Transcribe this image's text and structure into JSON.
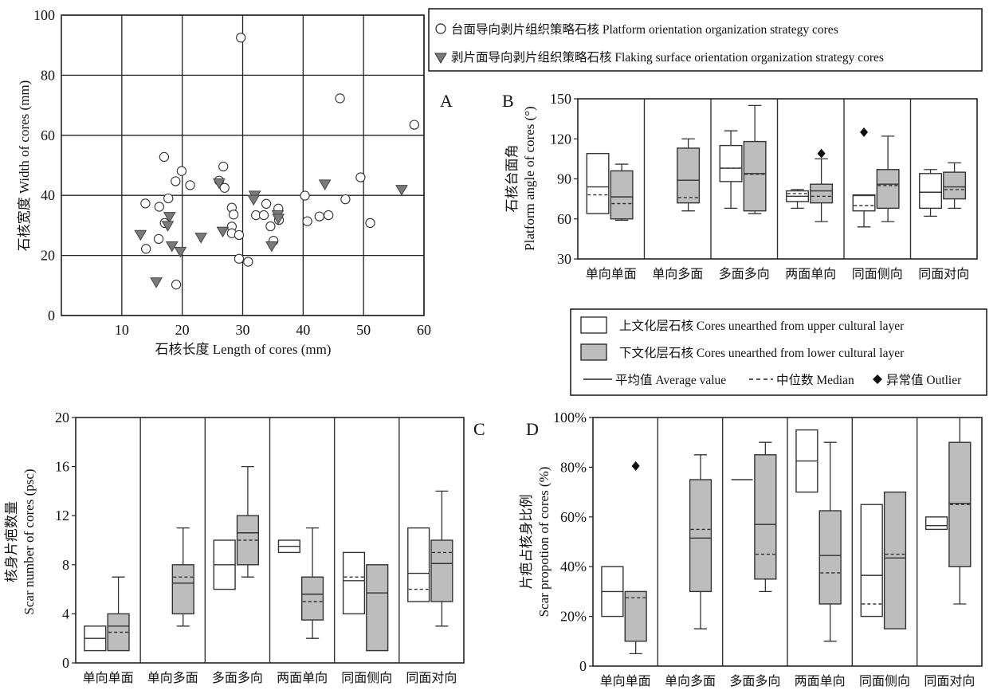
{
  "legend_a": {
    "items": [
      {
        "symbol": "circle",
        "label": "台面导向剥片组织策略石核 Platform orientation organization strategy cores"
      },
      {
        "symbol": "triangle",
        "label": "剥片面导向剥片组织策略石核 Flaking surface orientation organization strategy cores"
      }
    ]
  },
  "legend_box": {
    "upper": "上文化层石核 Cores unearthed from upper cultural layer",
    "lower": "下文化层石核 Cores unearthed from lower cultural layer",
    "mean": "平均值 Average value",
    "median": "中位数 Median",
    "outlier": "异常值 Outlier"
  },
  "colors": {
    "upper_fill": "#ffffff",
    "lower_fill": "#bdbdbd",
    "triangle_fill": "#7a7a7a",
    "stroke": "#2b2b2b"
  },
  "chart_data": [
    {
      "id": "A",
      "panel_label": "A",
      "type": "scatter",
      "xlabel": "石核长度 Length of cores (mm)",
      "ylabel": "石核宽度 Width of cores (mm)",
      "xlim": [
        0,
        60
      ],
      "ylim": [
        0,
        100
      ],
      "xticks": [
        10,
        20,
        30,
        40,
        50,
        60
      ],
      "yticks": [
        0,
        20,
        40,
        60,
        80,
        100
      ],
      "grid": true,
      "legend_position": "top-right (outside)",
      "series": [
        {
          "name": "台面导向剥片组织策略石核 Platform orientation organization strategy cores",
          "marker": "circle",
          "points": [
            [
              29.7,
              92.5
            ],
            [
              46.1,
              72.3
            ],
            [
              58.4,
              63.5
            ],
            [
              17.0,
              52.8
            ],
            [
              19.9,
              48.1
            ],
            [
              26.8,
              49.6
            ],
            [
              18.9,
              44.7
            ],
            [
              21.3,
              43.4
            ],
            [
              26.1,
              44.9
            ],
            [
              27.0,
              42.5
            ],
            [
              49.5,
              46.0
            ],
            [
              17.7,
              39.0
            ],
            [
              13.9,
              37.3
            ],
            [
              16.2,
              36.2
            ],
            [
              40.3,
              39.9
            ],
            [
              47.0,
              38.7
            ],
            [
              28.2,
              35.9
            ],
            [
              28.5,
              33.6
            ],
            [
              33.9,
              37.2
            ],
            [
              35.9,
              35.6
            ],
            [
              32.2,
              33.4
            ],
            [
              33.5,
              33.4
            ],
            [
              36.0,
              31.8
            ],
            [
              34.6,
              29.7
            ],
            [
              28.2,
              29.6
            ],
            [
              28.2,
              27.4
            ],
            [
              29.4,
              26.8
            ],
            [
              17.1,
              30.8
            ],
            [
              16.1,
              25.5
            ],
            [
              14.0,
              22.2
            ],
            [
              35.1,
              24.9
            ],
            [
              29.4,
              18.9
            ],
            [
              30.9,
              17.9
            ],
            [
              19.0,
              10.3
            ],
            [
              44.2,
              33.4
            ],
            [
              42.7,
              33.0
            ],
            [
              40.7,
              31.4
            ],
            [
              51.1,
              30.8
            ]
          ]
        },
        {
          "name": "剥片面导向剥片组织策略石核 Flaking surface orientation organization strategy cores",
          "marker": "triangle-down",
          "points": [
            [
              26.1,
              44.2
            ],
            [
              32.0,
              40.1
            ],
            [
              31.8,
              38.7
            ],
            [
              43.6,
              43.8
            ],
            [
              56.3,
              42.0
            ],
            [
              35.8,
              33.6
            ],
            [
              35.9,
              32.4
            ],
            [
              17.9,
              33.0
            ],
            [
              17.6,
              30.0
            ],
            [
              13.1,
              27.0
            ],
            [
              26.7,
              28.1
            ],
            [
              23.1,
              26.1
            ],
            [
              18.3,
              23.2
            ],
            [
              19.7,
              21.4
            ],
            [
              34.8,
              23.2
            ],
            [
              15.7,
              11.2
            ]
          ]
        }
      ]
    },
    {
      "id": "B",
      "panel_label": "B",
      "type": "box",
      "ylabel": "石核台面角 Platform angle of cores (°)",
      "ylim": [
        30,
        150
      ],
      "yticks": [
        30,
        60,
        90,
        120,
        150
      ],
      "categories": [
        "单向单面",
        "单向多面",
        "多面多向",
        "两面单向",
        "同面侧向",
        "同面对向"
      ],
      "groups": [
        {
          "upper": {
            "q1": 64,
            "q3": 109,
            "mean": 84,
            "median": 78
          },
          "lower": {
            "q1": 60,
            "q3": 96,
            "mean": 76.5,
            "median": 71.5,
            "min": 59,
            "max": 101
          }
        },
        {
          "upper": null,
          "lower": {
            "q1": 72,
            "q3": 113,
            "mean": 89,
            "median": 76,
            "min": 66,
            "max": 120
          }
        },
        {
          "upper": {
            "q1": 88,
            "q3": 115,
            "mean": 98,
            "median": 98,
            "min": 68,
            "max": 126
          },
          "lower": {
            "q1": 66,
            "q3": 118,
            "mean": 94,
            "median": 93.5,
            "min": 64,
            "max": 145
          }
        },
        {
          "upper": {
            "q1": 73,
            "q3": 81,
            "mean": 77,
            "median": 79,
            "min": 68,
            "max": 82
          },
          "lower": {
            "q1": 72,
            "q3": 86,
            "mean": 81,
            "median": 77,
            "min": 58,
            "max": 105,
            "outliers": [
              109
            ]
          }
        },
        {
          "upper": {
            "q1": 66,
            "q3": 78,
            "mean": 77.5,
            "median": 70,
            "min": 54,
            "outliers": [
              125
            ]
          },
          "lower": {
            "q1": 68,
            "q3": 97,
            "mean": 86,
            "median": 85,
            "min": 58,
            "max": 122
          }
        },
        {
          "upper": {
            "q1": 68,
            "q3": 94,
            "mean": 80,
            "median": 80,
            "min": 62,
            "max": 97
          },
          "lower": {
            "q1": 75,
            "q3": 95,
            "mean": 84,
            "median": 82,
            "min": 68,
            "max": 102
          }
        }
      ]
    },
    {
      "id": "C",
      "panel_label": "C",
      "type": "box",
      "ylabel": "核身片疤数量 Scar number of cores (psc)",
      "ylim": [
        0,
        20
      ],
      "yticks": [
        0,
        4,
        8,
        12,
        16,
        20
      ],
      "categories": [
        "单向单面",
        "单向多面",
        "多面多向",
        "两面单向",
        "同面侧向",
        "同面对向"
      ],
      "groups": [
        {
          "upper": {
            "q1": 1,
            "q3": 3,
            "mean": 2
          },
          "lower": {
            "q1": 1,
            "q3": 4,
            "mean": 3,
            "median": 2.5,
            "max": 7
          }
        },
        {
          "upper": null,
          "lower": {
            "q1": 4,
            "q3": 8,
            "mean": 6.5,
            "median": 7,
            "min": 3,
            "max": 11
          }
        },
        {
          "upper": {
            "q1": 6,
            "q3": 10,
            "mean": 8
          },
          "lower": {
            "q1": 8,
            "q3": 12,
            "mean": 10.6,
            "median": 10,
            "min": 7,
            "max": 16
          }
        },
        {
          "upper": {
            "q1": 9,
            "q3": 10,
            "mean": 9.5
          },
          "lower": {
            "q1": 3.5,
            "q3": 7,
            "mean": 5.6,
            "median": 5,
            "min": 2,
            "max": 11
          }
        },
        {
          "upper": {
            "q1": 4,
            "q3": 9,
            "mean": 6.7,
            "median": 7
          },
          "lower": {
            "q1": 1,
            "q3": 8,
            "mean": 5.7
          }
        },
        {
          "upper": {
            "q1": 5,
            "q3": 11,
            "mean": 7.3,
            "median": 6
          },
          "lower": {
            "q1": 5,
            "q3": 10,
            "mean": 8.1,
            "median": 9,
            "min": 3,
            "max": 14
          }
        }
      ]
    },
    {
      "id": "D",
      "panel_label": "D",
      "type": "box",
      "ylabel": "片疤占核身比例 Scar propotion of cores (%)",
      "ylim": [
        0,
        100
      ],
      "yticks": [
        0,
        20,
        40,
        60,
        80,
        100
      ],
      "ytick_labels": [
        "0",
        "20%",
        "40%",
        "60%",
        "80%",
        "100%"
      ],
      "categories": [
        "单向单面",
        "单向多面",
        "多面多向",
        "两面单向",
        "同面侧向",
        "同面对向"
      ],
      "groups": [
        {
          "upper": {
            "q1": 20,
            "q3": 40,
            "mean": 30
          },
          "lower": {
            "q1": 10,
            "q3": 30,
            "median": 27.5,
            "min": 5,
            "outliers": [
              80.5
            ]
          }
        },
        {
          "upper": null,
          "lower": {
            "q1": 30,
            "q3": 75,
            "mean": 51.5,
            "median": 55,
            "min": 15,
            "max": 85
          }
        },
        {
          "upper": {
            "q1": 75,
            "q3": 75,
            "mean": 75
          },
          "lower": {
            "q1": 35,
            "q3": 85,
            "mean": 57,
            "median": 45,
            "min": 30,
            "max": 90
          }
        },
        {
          "upper": {
            "q1": 70,
            "q3": 95,
            "mean": 82.5
          },
          "lower": {
            "q1": 25,
            "q3": 62.5,
            "mean": 44.5,
            "median": 37.5,
            "min": 10,
            "max": 90
          }
        },
        {
          "upper": {
            "q1": 20,
            "q3": 65,
            "mean": 36.5,
            "median": 25
          },
          "lower": {
            "q1": 15,
            "q3": 70,
            "mean": 43.5,
            "median": 45
          }
        },
        {
          "upper": {
            "q1": 55,
            "q3": 60,
            "mean": 56.5
          },
          "lower": {
            "q1": 40,
            "q3": 90,
            "mean": 65.5,
            "median": 65,
            "min": 25,
            "max": 100
          }
        }
      ]
    }
  ]
}
